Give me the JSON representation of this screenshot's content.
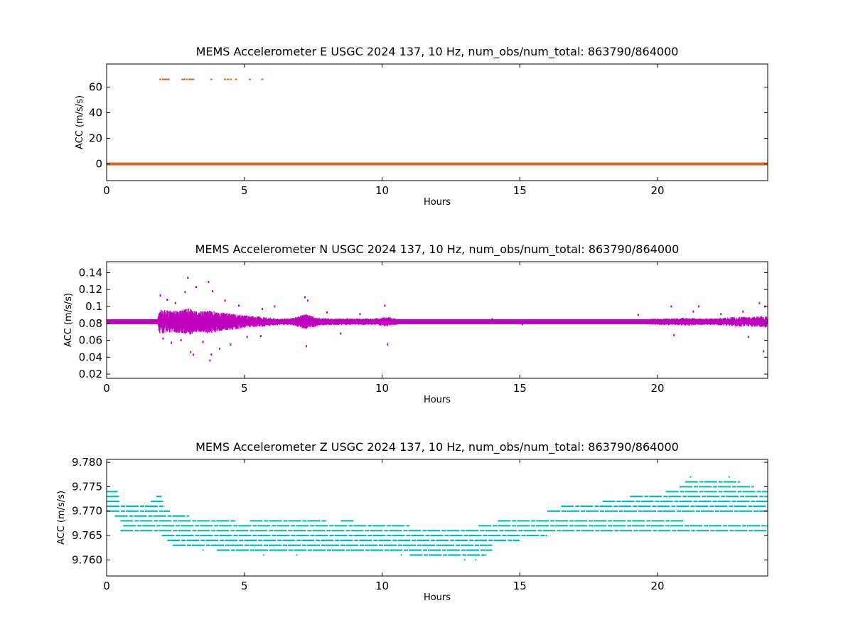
{
  "chart_data": [
    {
      "type": "scatter",
      "title": "MEMS Accelerometer E USGC 2024 137, 10 Hz, num_obs/num_total: 863790/864000",
      "xlabel": "Hours",
      "ylabel": "ACC (m/s/s)",
      "xlim": [
        0,
        24
      ],
      "ylim": [
        -13,
        78
      ],
      "xticks": [
        0,
        5,
        10,
        15,
        20
      ],
      "yticks": [
        0,
        20,
        40,
        60
      ],
      "color": "#d2691e",
      "series": [
        {
          "baseline": {
            "x": [
              0,
              24
            ],
            "y": 0
          },
          "spikes": {
            "x": [
              1.95,
              2.05,
              2.1,
              2.15,
              2.2,
              2.25,
              2.75,
              2.8,
              2.9,
              3.0,
              3.05,
              3.1,
              3.15,
              3.8,
              4.3,
              4.4,
              4.5,
              4.7,
              5.2,
              5.65
            ],
            "y": [
              66,
              66,
              66,
              66,
              66,
              66,
              66,
              66,
              66,
              66,
              66,
              66,
              66,
              66,
              66,
              66,
              66,
              66,
              66,
              66
            ]
          }
        }
      ]
    },
    {
      "type": "scatter",
      "title": "MEMS Accelerometer N USGC 2024 137, 10 Hz, num_obs/num_total: 863790/864000",
      "xlabel": "Hours",
      "ylabel": "ACC (m/s/s)",
      "xlim": [
        0,
        24
      ],
      "ylim": [
        0.015,
        0.153
      ],
      "xticks": [
        0,
        5,
        10,
        15,
        20
      ],
      "yticks": [
        0.02,
        0.04,
        0.06,
        0.08,
        0.1,
        0.12,
        0.14
      ],
      "color": "#bf00bf",
      "series": [
        {
          "center": 0.082,
          "envelope": {
            "x": [
              0,
              1.85,
              1.9,
              2.0,
              2.5,
              3.0,
              3.3,
              3.7,
              4.2,
              4.7,
              5.2,
              5.7,
              6.2,
              6.7,
              7.2,
              7.7,
              8.2,
              8.7,
              9.2,
              9.7,
              10.2,
              10.6,
              11,
              12,
              13,
              14,
              15,
              16,
              17,
              18,
              18.9,
              19.5,
              20,
              20.5,
              21,
              21.5,
              22,
              22.5,
              23,
              23.5,
              24
            ],
            "amp": [
              0.002,
              0.002,
              0.015,
              0.014,
              0.013,
              0.016,
              0.012,
              0.014,
              0.011,
              0.009,
              0.007,
              0.006,
              0.004,
              0.004,
              0.009,
              0.005,
              0.004,
              0.004,
              0.004,
              0.004,
              0.006,
              0.003,
              0.002,
              0.002,
              0.002,
              0.002,
              0.003,
              0.002,
              0.002,
              0.002,
              0.002,
              0.003,
              0.004,
              0.004,
              0.005,
              0.004,
              0.004,
              0.005,
              0.006,
              0.006,
              0.007
            ]
          },
          "outliers": {
            "x": [
              1.95,
              2.05,
              2.2,
              2.35,
              2.5,
              2.7,
              2.85,
              2.95,
              3.05,
              3.15,
              3.25,
              3.5,
              3.7,
              3.75,
              3.8,
              3.85,
              4.1,
              4.3,
              4.5,
              4.8,
              5.1,
              5.6,
              5.65,
              6.1,
              7.2,
              7.25,
              7.3,
              8.0,
              8.5,
              9.2,
              10.1,
              10.2,
              14.0,
              15.1,
              19.3,
              20.5,
              20.6,
              21.3,
              21.5,
              22.3,
              23.1,
              23.3,
              23.7,
              23.85,
              23.9
            ],
            "y": [
              0.113,
              0.062,
              0.108,
              0.057,
              0.104,
              0.06,
              0.117,
              0.134,
              0.046,
              0.043,
              0.123,
              0.058,
              0.129,
              0.036,
              0.043,
              0.118,
              0.05,
              0.107,
              0.055,
              0.101,
              0.064,
              0.065,
              0.097,
              0.1,
              0.111,
              0.053,
              0.107,
              0.093,
              0.068,
              0.091,
              0.101,
              0.055,
              0.085,
              0.079,
              0.09,
              0.1,
              0.066,
              0.094,
              0.1,
              0.091,
              0.094,
              0.064,
              0.104,
              0.047,
              0.1
            ]
          }
        }
      ]
    },
    {
      "type": "scatter",
      "title": "MEMS Accelerometer Z USGC 2024 137, 10 Hz, num_obs/num_total: 863790/864000",
      "xlabel": "Hours",
      "ylabel": "ACC (m/s/s)",
      "xlim": [
        0,
        24
      ],
      "ylim": [
        9.7567,
        9.7806
      ],
      "xticks": [
        0,
        5,
        10,
        15,
        20
      ],
      "yticks": [
        9.76,
        9.765,
        9.77,
        9.775,
        9.78
      ],
      "yticklabels": [
        "9.760",
        "9.765",
        "9.770",
        "9.775",
        "9.780"
      ],
      "color": "#00bfbf",
      "series": [
        {
          "levels": [
            {
              "y": 9.774,
              "segments": [
                [
                  0,
                  0.4
                ]
              ]
            },
            {
              "y": 9.773,
              "segments": [
                [
                  0,
                  0.45
                ],
                [
                  1.8,
                  2.0
                ]
              ]
            },
            {
              "y": 9.772,
              "segments": [
                [
                  0,
                  0.5
                ],
                [
                  1.6,
                  2.05
                ]
              ]
            },
            {
              "y": 9.771,
              "segments": [
                [
                  0,
                  2.1
                ]
              ]
            },
            {
              "y": 9.77,
              "segments": [
                [
                  0,
                  2.3
                ]
              ]
            },
            {
              "y": 9.769,
              "segments": [
                [
                  0.3,
                  3.0
                ]
              ]
            },
            {
              "y": 9.768,
              "segments": [
                [
                  0.5,
                  4.7
                ],
                [
                  5.2,
                  8.0
                ],
                [
                  8.5,
                  9.0
                ],
                [
                  14.2,
                  21.0
                ]
              ]
            },
            {
              "y": 9.767,
              "segments": [
                [
                  0.6,
                  11.0
                ],
                [
                  13.5,
                  24.0
                ]
              ]
            },
            {
              "y": 9.766,
              "segments": [
                [
                  0.5,
                  24.0
                ]
              ]
            },
            {
              "y": 9.765,
              "segments": [
                [
                  2.0,
                  16.0
                ]
              ]
            },
            {
              "y": 9.764,
              "segments": [
                [
                  2.2,
                  15.0
                ]
              ]
            },
            {
              "y": 9.763,
              "segments": [
                [
                  2.4,
                  14.0
                ]
              ]
            },
            {
              "y": 9.762,
              "segments": [
                [
                  4.0,
                  14.0
                ]
              ]
            },
            {
              "y": 9.761,
              "segments": [
                [
                  11.0,
                  13.8
                ]
              ]
            },
            {
              "y": 9.77,
              "segments": [
                [
                  16.0,
                  24.0
                ]
              ]
            },
            {
              "y": 9.771,
              "segments": [
                [
                  16.5,
                  24.0
                ]
              ]
            },
            {
              "y": 9.772,
              "segments": [
                [
                  18.0,
                  24.0
                ]
              ]
            },
            {
              "y": 9.773,
              "segments": [
                [
                  19.0,
                  24.0
                ]
              ]
            },
            {
              "y": 9.774,
              "segments": [
                [
                  20.3,
                  24.0
                ]
              ]
            },
            {
              "y": 9.775,
              "segments": [
                [
                  20.8,
                  23.5
                ]
              ]
            },
            {
              "y": 9.776,
              "segments": [
                [
                  21.0,
                  23.0
                ]
              ]
            }
          ],
          "outliers": {
            "x": [
              3.5,
              5.7,
              6.9,
              10.7,
              13.0,
              13.4,
              21.2,
              22.6
            ],
            "y": [
              9.762,
              9.761,
              9.761,
              9.761,
              9.76,
              9.76,
              9.777,
              9.777
            ]
          }
        }
      ]
    }
  ]
}
